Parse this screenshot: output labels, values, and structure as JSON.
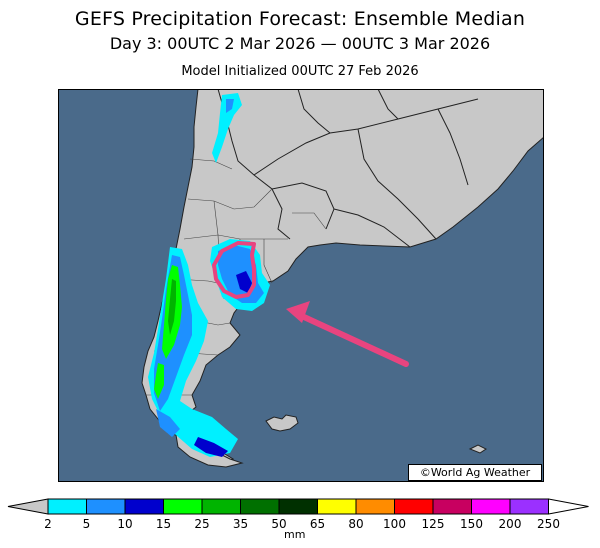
{
  "header": {
    "title": "GEFS Precipitation Forecast: Ensemble Median",
    "period": "Day 3: 00UTC 2 Mar 2026 — 00UTC 3 Mar 2026",
    "initialized": "Model Initialized 00UTC 27 Feb 2026"
  },
  "map": {
    "credit": "©World Ag Weather",
    "ocean_color": "#4a6a8a",
    "land_color": "#c8c8c8",
    "annotation_color": "#e8447f",
    "annotation": "circled highlight with arrow pointing to heavy-precipitation area in central Argentina"
  },
  "legend": {
    "unit": "mm",
    "ticks": [
      "2",
      "5",
      "10",
      "15",
      "25",
      "35",
      "50",
      "65",
      "80",
      "100",
      "125",
      "150",
      "200",
      "250"
    ],
    "colors": [
      "#00f0ff",
      "#1e90ff",
      "#0000cd",
      "#00ff00",
      "#00b400",
      "#007000",
      "#003000",
      "#ffff00",
      "#ff8c00",
      "#ff0000",
      "#c80060",
      "#ff00ff",
      "#9b30ff"
    ]
  }
}
